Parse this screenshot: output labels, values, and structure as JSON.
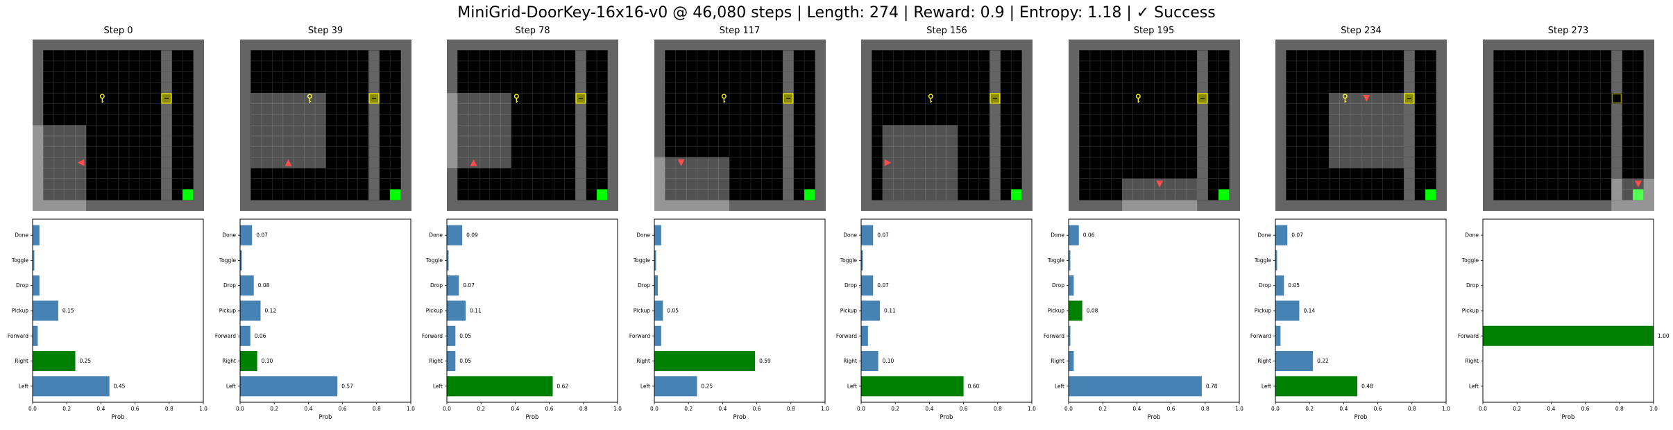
{
  "figure": {
    "title": "MiniGrid-DoorKey-16x16-v0 @ 46,080 steps | Length: 274 | Reward: 0.9 | Entropy: 1.18 | ✓ Success"
  },
  "colors": {
    "wall": "#646464",
    "floor": "#000000",
    "grid_line": "#2a2a2a",
    "visible_overlay": "rgba(255,255,255,0.32)",
    "key": "#ffff00",
    "door": "#8a8a00",
    "goal": "#00ff00",
    "agent": "#ff4d4d",
    "bar_default": "#4682b4",
    "bar_chosen": "#008000"
  },
  "grid": {
    "cols": 16,
    "rows": 16
  },
  "chart_data": {
    "type": "bar",
    "orientation": "horizontal",
    "categories": [
      "Left",
      "Right",
      "Forward",
      "Pickup",
      "Drop",
      "Toggle",
      "Done"
    ],
    "xlabel": "Prob",
    "xlim": [
      0,
      1
    ],
    "xticks": [
      "0.0",
      "0.2",
      "0.4",
      "0.6",
      "0.8",
      "1.0"
    ],
    "label_threshold": 0.05,
    "panels": [
      {
        "step_label": "Step 0",
        "agent": {
          "x": 4,
          "y": 11,
          "dir": "left"
        },
        "door_open": false,
        "key_held": false,
        "view": {
          "x0": 0,
          "y0": 8,
          "x1": 4,
          "y1": 15
        },
        "values": [
          0.45,
          0.25,
          0.03,
          0.15,
          0.04,
          0.01,
          0.04
        ],
        "chosen": 1
      },
      {
        "step_label": "Step 39",
        "agent": {
          "x": 4,
          "y": 11,
          "dir": "up"
        },
        "door_open": false,
        "key_held": false,
        "view": {
          "x0": 1,
          "y0": 5,
          "x1": 7,
          "y1": 11
        },
        "values": [
          0.57,
          0.1,
          0.06,
          0.12,
          0.08,
          0.01,
          0.07
        ],
        "chosen": 1
      },
      {
        "step_label": "Step 78",
        "agent": {
          "x": 2,
          "y": 11,
          "dir": "up"
        },
        "door_open": false,
        "key_held": false,
        "view": {
          "x0": 0,
          "y0": 5,
          "x1": 5,
          "y1": 11
        },
        "values": [
          0.62,
          0.05,
          0.05,
          0.11,
          0.07,
          0.01,
          0.09
        ],
        "chosen": 0
      },
      {
        "step_label": "Step 117",
        "agent": {
          "x": 2,
          "y": 11,
          "dir": "down"
        },
        "door_open": false,
        "key_held": false,
        "view": {
          "x0": 0,
          "y0": 11,
          "x1": 6,
          "y1": 15
        },
        "values": [
          0.25,
          0.59,
          0.04,
          0.05,
          0.02,
          0.01,
          0.04
        ],
        "chosen": 1
      },
      {
        "step_label": "Step 156",
        "agent": {
          "x": 2,
          "y": 11,
          "dir": "right"
        },
        "door_open": false,
        "key_held": false,
        "view": {
          "x0": 2,
          "y0": 8,
          "x1": 8,
          "y1": 14
        },
        "values": [
          0.6,
          0.1,
          0.04,
          0.11,
          0.07,
          0.01,
          0.07
        ],
        "chosen": 0
      },
      {
        "step_label": "Step 195",
        "agent": {
          "x": 8,
          "y": 13,
          "dir": "down"
        },
        "door_open": false,
        "key_held": false,
        "view": {
          "x0": 5,
          "y0": 13,
          "x1": 11,
          "y1": 15
        },
        "values": [
          0.78,
          0.03,
          0.01,
          0.08,
          0.03,
          0.01,
          0.06
        ],
        "chosen": 3
      },
      {
        "step_label": "Step 234",
        "agent": {
          "x": 8,
          "y": 5,
          "dir": "down"
        },
        "door_open": false,
        "key_held": false,
        "view": {
          "x0": 5,
          "y0": 5,
          "x1": 11,
          "y1": 11
        },
        "values": [
          0.48,
          0.22,
          0.03,
          0.14,
          0.05,
          0.01,
          0.07
        ],
        "chosen": 0
      },
      {
        "step_label": "Step 273",
        "agent": {
          "x": 14,
          "y": 13,
          "dir": "down"
        },
        "door_open": true,
        "key_held": true,
        "view": {
          "x0": 12,
          "y0": 13,
          "x1": 15,
          "y1": 15
        },
        "values": [
          0.0,
          0.0,
          1.0,
          0.0,
          0.0,
          0.0,
          0.0
        ],
        "chosen": 2
      }
    ]
  }
}
